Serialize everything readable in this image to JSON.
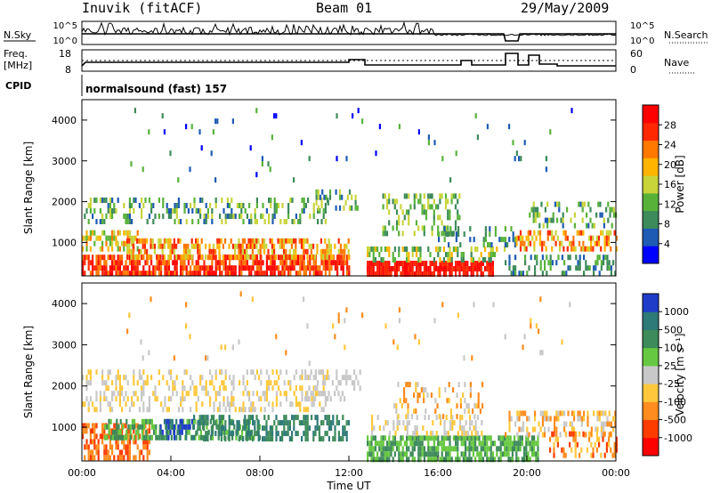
{
  "header": {
    "station": "Inuvik (fitACF)",
    "beam": "Beam 01",
    "date": "29/May/2009"
  },
  "nsky_panel": {
    "left_label": "N.Sky",
    "right_label": "N.Search",
    "left_ticks": [
      "10^5",
      "10^0"
    ],
    "right_ticks": [
      "10^5",
      "10^0"
    ]
  },
  "freq_panel": {
    "left_label_line1": "Freq.",
    "left_label_line2": "[MHz]",
    "right_label": "Nave",
    "left_ticks": [
      "18",
      "8"
    ],
    "right_ticks": [
      "60",
      "0"
    ]
  },
  "cpid": {
    "label": "CPID",
    "value": "normalsound (fast) 157"
  },
  "colors": {
    "power": [
      "#0000ff",
      "#1e5bb4",
      "#3d8a5a",
      "#58b23a",
      "#c8d43a",
      "#ffb400",
      "#ff7800",
      "#ff2800",
      "#ff0000"
    ],
    "velocity": [
      "#1e3cc8",
      "#2e7a78",
      "#3d8a5a",
      "#66c840",
      "#c8c8c8",
      "#ffc83c",
      "#ff8c1e",
      "#ff3c00",
      "#ff0000"
    ]
  },
  "chart_data": [
    {
      "type": "heatmap",
      "name": "power",
      "ylabel": "Slant Range [km]",
      "yticks": [
        1000,
        2000,
        3000,
        4000
      ],
      "ylim": [
        180,
        4500
      ],
      "xlim": [
        0,
        24
      ],
      "colorbar_label": "Power [dB]",
      "colorbar_ticks": [
        "28",
        "24",
        "20",
        "16",
        "12",
        "8",
        "4"
      ],
      "colorbar_range": [
        0,
        32
      ]
    },
    {
      "type": "heatmap",
      "name": "velocity",
      "ylabel": "Slant Range [km]",
      "yticks": [
        1000,
        2000,
        3000,
        4000
      ],
      "ylim": [
        180,
        4500
      ],
      "xlim": [
        0,
        24
      ],
      "xlabel": "Time UT",
      "xticks": [
        "00:00",
        "04:00",
        "08:00",
        "12:00",
        "16:00",
        "20:00",
        "00:00"
      ],
      "colorbar_label": "Velocity [m s⁻¹]",
      "colorbar_ticks": [
        "1000",
        "500",
        "100",
        "25",
        "-25",
        "-100",
        "-500",
        "-1000"
      ]
    }
  ]
}
